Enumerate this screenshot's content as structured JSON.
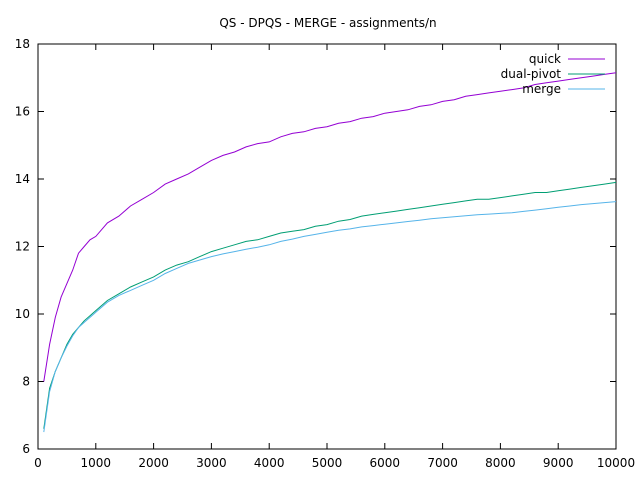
{
  "chart_data": {
    "type": "line",
    "title": "QS - DPQS - MERGE - assignments/n",
    "xlabel": "",
    "ylabel": "",
    "xlim": [
      0,
      10000
    ],
    "ylim": [
      6,
      18
    ],
    "xticks": [
      "0",
      "1000",
      "2000",
      "3000",
      "4000",
      "5000",
      "6000",
      "7000",
      "8000",
      "9000",
      "10000"
    ],
    "yticks": [
      "6",
      "8",
      "10",
      "12",
      "14",
      "16",
      "18"
    ],
    "grid": false,
    "legend_position": "top-right",
    "x": [
      100,
      200,
      300,
      400,
      500,
      600,
      700,
      800,
      900,
      1000,
      1200,
      1400,
      1600,
      1800,
      2000,
      2200,
      2400,
      2600,
      2800,
      3000,
      3200,
      3400,
      3600,
      3800,
      4000,
      4200,
      4400,
      4600,
      4800,
      5000,
      5200,
      5400,
      5600,
      5800,
      6000,
      6200,
      6400,
      6600,
      6800,
      7000,
      7200,
      7400,
      7600,
      7800,
      8000,
      8200,
      8400,
      8600,
      8800,
      9000,
      9200,
      9400,
      9600,
      9800,
      10000
    ],
    "series": [
      {
        "name": "quick",
        "color": "#9400d3",
        "values": [
          8.0,
          9.1,
          9.9,
          10.5,
          10.9,
          11.3,
          11.8,
          12.0,
          12.2,
          12.3,
          12.7,
          12.9,
          13.2,
          13.4,
          13.6,
          13.85,
          14.0,
          14.15,
          14.35,
          14.55,
          14.7,
          14.8,
          14.95,
          15.05,
          15.1,
          15.25,
          15.35,
          15.4,
          15.5,
          15.55,
          15.65,
          15.7,
          15.8,
          15.85,
          15.95,
          16.0,
          16.05,
          16.15,
          16.2,
          16.3,
          16.35,
          16.45,
          16.5,
          16.55,
          16.6,
          16.65,
          16.7,
          16.8,
          16.85,
          16.9,
          16.95,
          17.0,
          17.05,
          17.1,
          17.15
        ]
      },
      {
        "name": "dual-pivot",
        "color": "#009e73",
        "values": [
          6.6,
          7.8,
          8.3,
          8.7,
          9.1,
          9.4,
          9.6,
          9.8,
          9.95,
          10.1,
          10.4,
          10.6,
          10.8,
          10.95,
          11.1,
          11.3,
          11.45,
          11.55,
          11.7,
          11.85,
          11.95,
          12.05,
          12.15,
          12.2,
          12.3,
          12.4,
          12.45,
          12.5,
          12.6,
          12.65,
          12.75,
          12.8,
          12.9,
          12.95,
          13.0,
          13.05,
          13.1,
          13.15,
          13.2,
          13.25,
          13.3,
          13.35,
          13.4,
          13.4,
          13.45,
          13.5,
          13.55,
          13.6,
          13.6,
          13.65,
          13.7,
          13.75,
          13.8,
          13.85,
          13.9
        ]
      },
      {
        "name": "merge",
        "color": "#56b4e9",
        "values": [
          6.5,
          7.7,
          8.3,
          8.7,
          9.05,
          9.35,
          9.6,
          9.75,
          9.9,
          10.05,
          10.35,
          10.55,
          10.7,
          10.85,
          11.0,
          11.2,
          11.35,
          11.5,
          11.6,
          11.7,
          11.78,
          11.85,
          11.92,
          11.98,
          12.05,
          12.15,
          12.22,
          12.3,
          12.36,
          12.42,
          12.48,
          12.52,
          12.58,
          12.62,
          12.66,
          12.7,
          12.74,
          12.78,
          12.82,
          12.85,
          12.88,
          12.91,
          12.94,
          12.96,
          12.98,
          13.0,
          13.04,
          13.08,
          13.12,
          13.16,
          13.2,
          13.24,
          13.27,
          13.3,
          13.33
        ]
      }
    ]
  }
}
